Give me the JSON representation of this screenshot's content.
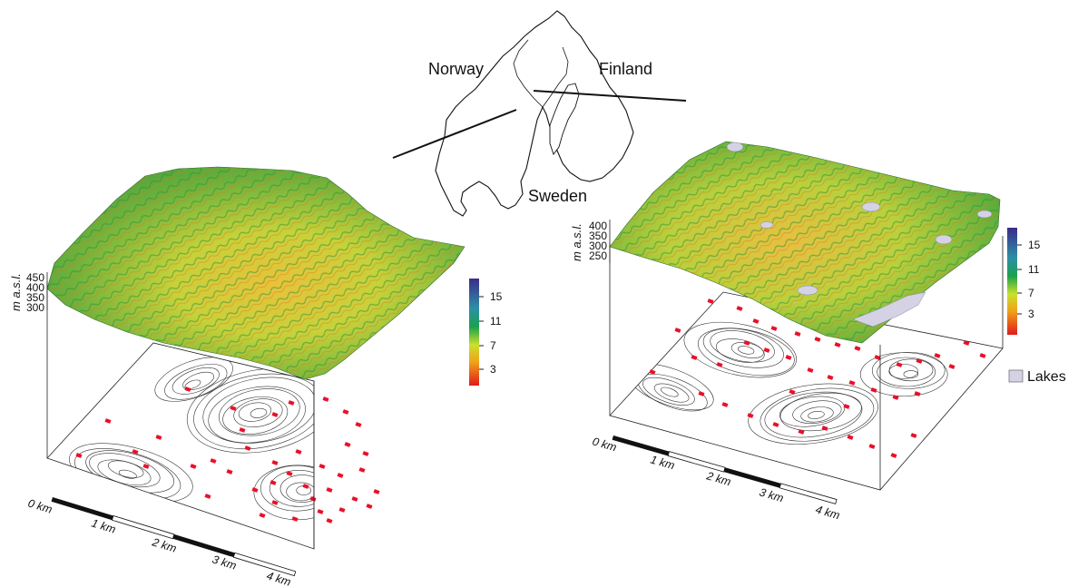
{
  "overview_map": {
    "labels": {
      "norway": "Norway",
      "finland": "Finland",
      "sweden": "Sweden"
    }
  },
  "left_panel": {
    "elevation_axis_label": "m a.s.l.",
    "elevation_ticks": [
      "450",
      "400",
      "350",
      "300"
    ],
    "colorbar_ticks": [
      "15",
      "11",
      "7",
      "3"
    ],
    "scale_labels": [
      "0 km",
      "1 km",
      "2 km",
      "3 km",
      "4 km"
    ]
  },
  "right_panel": {
    "elevation_axis_label": "m a.s.l.",
    "elevation_ticks": [
      "400",
      "350",
      "300",
      "250"
    ],
    "colorbar_ticks": [
      "15",
      "11",
      "7",
      "3"
    ],
    "scale_labels": [
      "0 km",
      "1 km",
      "2 km",
      "3 km",
      "4 km"
    ]
  },
  "legend": {
    "lakes_label": "Lakes",
    "lakes_color": "#d4d2e4"
  },
  "colors": {
    "plot_marker": "#e8102a",
    "colorbar": [
      "#3f2e8c",
      "#1f9b57",
      "#cfe12e",
      "#f2a21c",
      "#e0241c"
    ]
  }
}
